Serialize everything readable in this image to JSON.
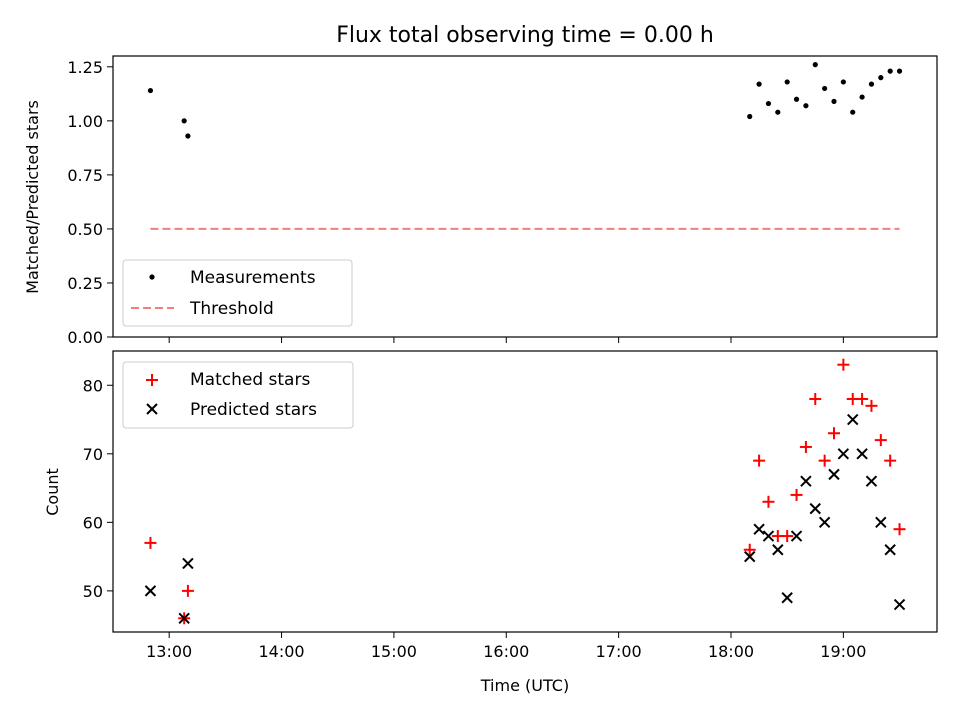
{
  "chart_data": [
    {
      "type": "scatter",
      "title": "Flux total observing time = 0.00 h",
      "xlabel": "",
      "ylabel": "Matched/Predicted stars",
      "xlim": [
        "12:30",
        "19:50"
      ],
      "ylim": [
        0.0,
        1.3
      ],
      "yticks": [
        "0.00",
        "0.25",
        "0.50",
        "0.75",
        "1.00",
        "1.25"
      ],
      "grid": false,
      "legend_position": "lower-left",
      "series": [
        {
          "name": "Measurements",
          "marker": "dot",
          "color": "#000000",
          "points": [
            [
              "12:50",
              1.14
            ],
            [
              "13:08",
              1.0
            ],
            [
              "13:10",
              0.93
            ],
            [
              "18:10",
              1.02
            ],
            [
              "18:15",
              1.17
            ],
            [
              "18:20",
              1.08
            ],
            [
              "18:25",
              1.04
            ],
            [
              "18:30",
              1.18
            ],
            [
              "18:35",
              1.1
            ],
            [
              "18:40",
              1.07
            ],
            [
              "18:45",
              1.26
            ],
            [
              "18:50",
              1.15
            ],
            [
              "18:55",
              1.09
            ],
            [
              "19:00",
              1.18
            ],
            [
              "19:05",
              1.04
            ],
            [
              "19:10",
              1.11
            ],
            [
              "19:15",
              1.17
            ],
            [
              "19:20",
              1.2
            ],
            [
              "19:25",
              1.23
            ],
            [
              "19:30",
              1.23
            ]
          ]
        },
        {
          "name": "Threshold",
          "style": "dashed-line",
          "color": "#f08080",
          "points": [
            [
              "12:50",
              0.5
            ],
            [
              "19:30",
              0.5
            ]
          ]
        }
      ]
    },
    {
      "type": "scatter",
      "title": "",
      "xlabel": "Time (UTC)",
      "ylabel": "Count",
      "xlim": [
        "12:30",
        "19:50"
      ],
      "ylim": [
        44,
        85
      ],
      "yticks": [
        "50",
        "60",
        "70",
        "80"
      ],
      "xticks": [
        "13:00",
        "14:00",
        "15:00",
        "16:00",
        "17:00",
        "18:00",
        "19:00"
      ],
      "grid": false,
      "legend_position": "upper-left",
      "series": [
        {
          "name": "Matched stars",
          "marker": "plus",
          "color": "#ff0000",
          "points": [
            [
              "12:50",
              57
            ],
            [
              "13:08",
              46
            ],
            [
              "13:10",
              50
            ],
            [
              "18:10",
              56
            ],
            [
              "18:15",
              69
            ],
            [
              "18:20",
              63
            ],
            [
              "18:25",
              58
            ],
            [
              "18:30",
              58
            ],
            [
              "18:35",
              64
            ],
            [
              "18:40",
              71
            ],
            [
              "18:45",
              78
            ],
            [
              "18:50",
              69
            ],
            [
              "18:55",
              73
            ],
            [
              "19:00",
              83
            ],
            [
              "19:05",
              78
            ],
            [
              "19:10",
              78
            ],
            [
              "19:15",
              77
            ],
            [
              "19:20",
              72
            ],
            [
              "19:25",
              69
            ],
            [
              "19:30",
              59
            ]
          ]
        },
        {
          "name": "Predicted stars",
          "marker": "x",
          "color": "#000000",
          "points": [
            [
              "12:50",
              50
            ],
            [
              "13:08",
              46
            ],
            [
              "13:10",
              54
            ],
            [
              "18:10",
              55
            ],
            [
              "18:15",
              59
            ],
            [
              "18:20",
              58
            ],
            [
              "18:25",
              56
            ],
            [
              "18:30",
              49
            ],
            [
              "18:35",
              58
            ],
            [
              "18:40",
              66
            ],
            [
              "18:45",
              62
            ],
            [
              "18:50",
              60
            ],
            [
              "18:55",
              67
            ],
            [
              "19:00",
              70
            ],
            [
              "19:05",
              75
            ],
            [
              "19:10",
              70
            ],
            [
              "19:15",
              66
            ],
            [
              "19:20",
              60
            ],
            [
              "19:25",
              56
            ],
            [
              "19:30",
              48
            ]
          ]
        }
      ]
    }
  ]
}
